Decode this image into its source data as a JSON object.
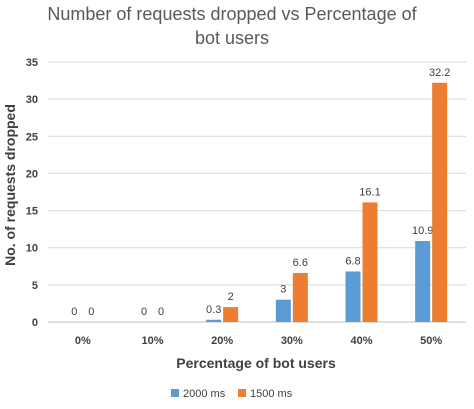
{
  "chart_data": {
    "type": "bar",
    "title_lines": [
      "Number of requests dropped vs Percentage of",
      "bot users"
    ],
    "xlabel": "Percentage of bot users",
    "ylabel": "No. of requests dropped",
    "categories": [
      "0%",
      "10%",
      "20%",
      "30%",
      "40%",
      "50%"
    ],
    "series": [
      {
        "name": "2000 ms",
        "color": "#5B9BD5",
        "values": [
          0,
          0,
          0.3,
          3,
          6.8,
          10.9
        ],
        "labels": [
          "0",
          "0",
          "0.3",
          "3",
          "6.8",
          "10.9"
        ]
      },
      {
        "name": "1500 ms",
        "color": "#ED7D31",
        "values": [
          0,
          0,
          2,
          6.6,
          16.1,
          32.2
        ],
        "labels": [
          "0",
          "0",
          "2",
          "6.6",
          "16.1",
          "32.2"
        ]
      }
    ],
    "ylim": [
      0,
      35
    ],
    "yticks": [
      "0",
      "5",
      "10",
      "15",
      "20",
      "25",
      "30",
      "35"
    ],
    "grid": true,
    "legend_position": "bottom"
  }
}
